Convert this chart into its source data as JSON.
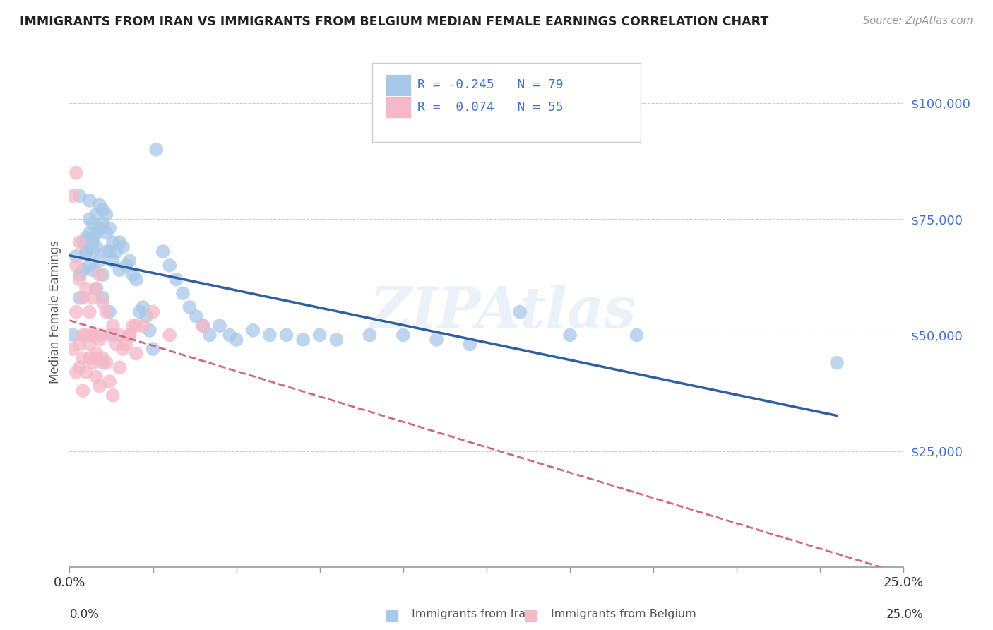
{
  "title": "IMMIGRANTS FROM IRAN VS IMMIGRANTS FROM BELGIUM MEDIAN FEMALE EARNINGS CORRELATION CHART",
  "source": "Source: ZipAtlas.com",
  "ylabel": "Median Female Earnings",
  "xlim": [
    0,
    0.25
  ],
  "ylim": [
    0,
    110000
  ],
  "legend_R_iran": "-0.245",
  "legend_N_iran": "79",
  "legend_R_belgium": "0.074",
  "legend_N_belgium": "55",
  "iran_color": "#a8c8e8",
  "belgium_color": "#f4b8c8",
  "iran_line_color": "#3060a0",
  "belgium_line_color": "#d06880",
  "iran_scatter_x": [
    0.001,
    0.002,
    0.003,
    0.003,
    0.004,
    0.004,
    0.005,
    0.005,
    0.006,
    0.006,
    0.007,
    0.007,
    0.007,
    0.008,
    0.008,
    0.008,
    0.009,
    0.009,
    0.01,
    0.01,
    0.011,
    0.011,
    0.012,
    0.012,
    0.013,
    0.013,
    0.014,
    0.015,
    0.015,
    0.016,
    0.017,
    0.018,
    0.019,
    0.02,
    0.021,
    0.022,
    0.023,
    0.024,
    0.025,
    0.026,
    0.028,
    0.03,
    0.032,
    0.034,
    0.036,
    0.038,
    0.04,
    0.042,
    0.045,
    0.048,
    0.05,
    0.055,
    0.06,
    0.065,
    0.07,
    0.075,
    0.08,
    0.09,
    0.1,
    0.11,
    0.12,
    0.135,
    0.15,
    0.17,
    0.003,
    0.005,
    0.006,
    0.006,
    0.007,
    0.007,
    0.008,
    0.009,
    0.009,
    0.01,
    0.01,
    0.011,
    0.012,
    0.013,
    0.23
  ],
  "iran_scatter_y": [
    50000,
    67000,
    63000,
    58000,
    70000,
    64000,
    71000,
    68000,
    75000,
    79000,
    74000,
    71000,
    68000,
    76000,
    72000,
    69000,
    78000,
    73000,
    77000,
    74000,
    76000,
    72000,
    73000,
    68000,
    70000,
    66000,
    68000,
    64000,
    70000,
    69000,
    65000,
    66000,
    63000,
    62000,
    55000,
    56000,
    54000,
    51000,
    47000,
    90000,
    68000,
    65000,
    62000,
    59000,
    56000,
    54000,
    52000,
    50000,
    52000,
    50000,
    49000,
    51000,
    50000,
    50000,
    49000,
    50000,
    49000,
    50000,
    50000,
    49000,
    48000,
    55000,
    50000,
    50000,
    80000,
    68000,
    72000,
    65000,
    70000,
    64000,
    60000,
    66000,
    73000,
    58000,
    63000,
    68000,
    55000,
    50000,
    44000
  ],
  "belgium_scatter_x": [
    0.001,
    0.002,
    0.002,
    0.003,
    0.003,
    0.004,
    0.004,
    0.005,
    0.005,
    0.006,
    0.006,
    0.007,
    0.007,
    0.008,
    0.008,
    0.009,
    0.009,
    0.01,
    0.01,
    0.011,
    0.012,
    0.013,
    0.014,
    0.015,
    0.016,
    0.017,
    0.018,
    0.019,
    0.02,
    0.022,
    0.003,
    0.004,
    0.005,
    0.006,
    0.007,
    0.007,
    0.008,
    0.008,
    0.009,
    0.009,
    0.01,
    0.011,
    0.012,
    0.013,
    0.015,
    0.018,
    0.02,
    0.025,
    0.03,
    0.04,
    0.001,
    0.002,
    0.002,
    0.003,
    0.004
  ],
  "belgium_scatter_y": [
    47000,
    65000,
    55000,
    62000,
    48000,
    58000,
    45000,
    60000,
    50000,
    55000,
    45000,
    58000,
    50000,
    60000,
    45000,
    63000,
    50000,
    57000,
    44000,
    55000,
    50000,
    52000,
    48000,
    50000,
    47000,
    48000,
    50000,
    52000,
    46000,
    52000,
    43000,
    50000,
    42000,
    48000,
    50000,
    44000,
    46000,
    41000,
    49000,
    39000,
    45000,
    44000,
    40000,
    37000,
    43000,
    50000,
    52000,
    55000,
    50000,
    52000,
    80000,
    85000,
    42000,
    70000,
    38000
  ]
}
